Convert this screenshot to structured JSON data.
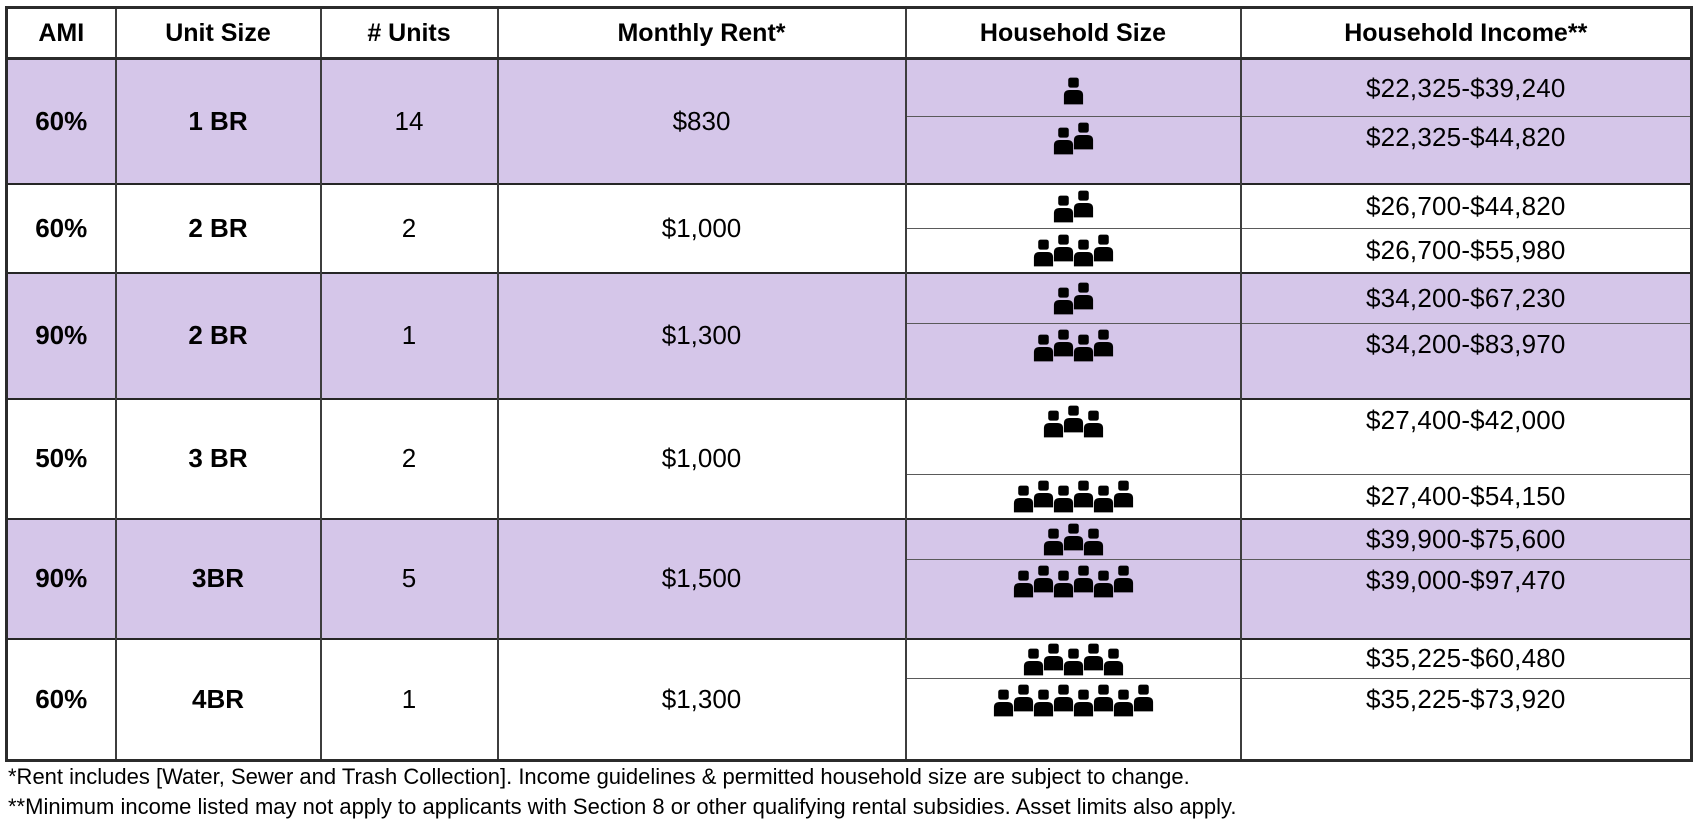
{
  "table": {
    "headers": [
      "AMI",
      "Unit Size",
      "# Units",
      "Monthly Rent*",
      "Household Size",
      "Household Income**"
    ],
    "groups": [
      {
        "ami": "60%",
        "unit_size": "1 BR",
        "num_units": "14",
        "monthly_rent": "$830",
        "shaded": true,
        "rows": [
          {
            "household_size": 1,
            "income": "$22,325-$39,240"
          },
          {
            "household_size": 2,
            "income": "$22,325-$44,820"
          }
        ]
      },
      {
        "ami": "60%",
        "unit_size": "2 BR",
        "num_units": "2",
        "monthly_rent": "$1,000",
        "shaded": false,
        "rows": [
          {
            "household_size": 2,
            "income": "$26,700-$44,820"
          },
          {
            "household_size": 4,
            "income": "$26,700-$55,980"
          }
        ]
      },
      {
        "ami": "90%",
        "unit_size": "2 BR",
        "num_units": "1",
        "monthly_rent": "$1,300",
        "shaded": true,
        "rows": [
          {
            "household_size": 2,
            "income": "$34,200-$67,230"
          },
          {
            "household_size": 4,
            "income": "$34,200-$83,970"
          }
        ]
      },
      {
        "ami": "50%",
        "unit_size": "3 BR",
        "num_units": "2",
        "monthly_rent": "$1,000",
        "shaded": false,
        "rows": [
          {
            "household_size": 3,
            "income": "$27,400-$42,000"
          },
          {
            "household_size": 6,
            "income": "$27,400-$54,150"
          }
        ]
      },
      {
        "ami": "90%",
        "unit_size": "3BR",
        "num_units": "5",
        "monthly_rent": "$1,500",
        "shaded": true,
        "rows": [
          {
            "household_size": 3,
            "income": "$39,900-$75,600"
          },
          {
            "household_size": 6,
            "income": "$39,000-$97,470"
          }
        ]
      },
      {
        "ami": "60%",
        "unit_size": "4BR",
        "num_units": "1",
        "monthly_rent": "$1,300",
        "shaded": false,
        "rows": [
          {
            "household_size": 5,
            "income": "$35,225-$60,480"
          },
          {
            "household_size": 8,
            "income": "$35,225-$73,920"
          }
        ]
      }
    ]
  },
  "footnotes": [
    "*Rent includes [Water, Sewer and Trash Collection]. Income guidelines & permitted household size are subject to change.",
    "**Minimum income listed may not apply to applicants with Section 8 or other qualifying rental subsidies. Asset limits also apply."
  ],
  "icons": {
    "household_person": "person-icon"
  },
  "colors": {
    "shaded_row": "#d5c6e9",
    "grid_line": "#3d3d3d",
    "outer_border": "#2b2b2b",
    "text": "#000000"
  }
}
